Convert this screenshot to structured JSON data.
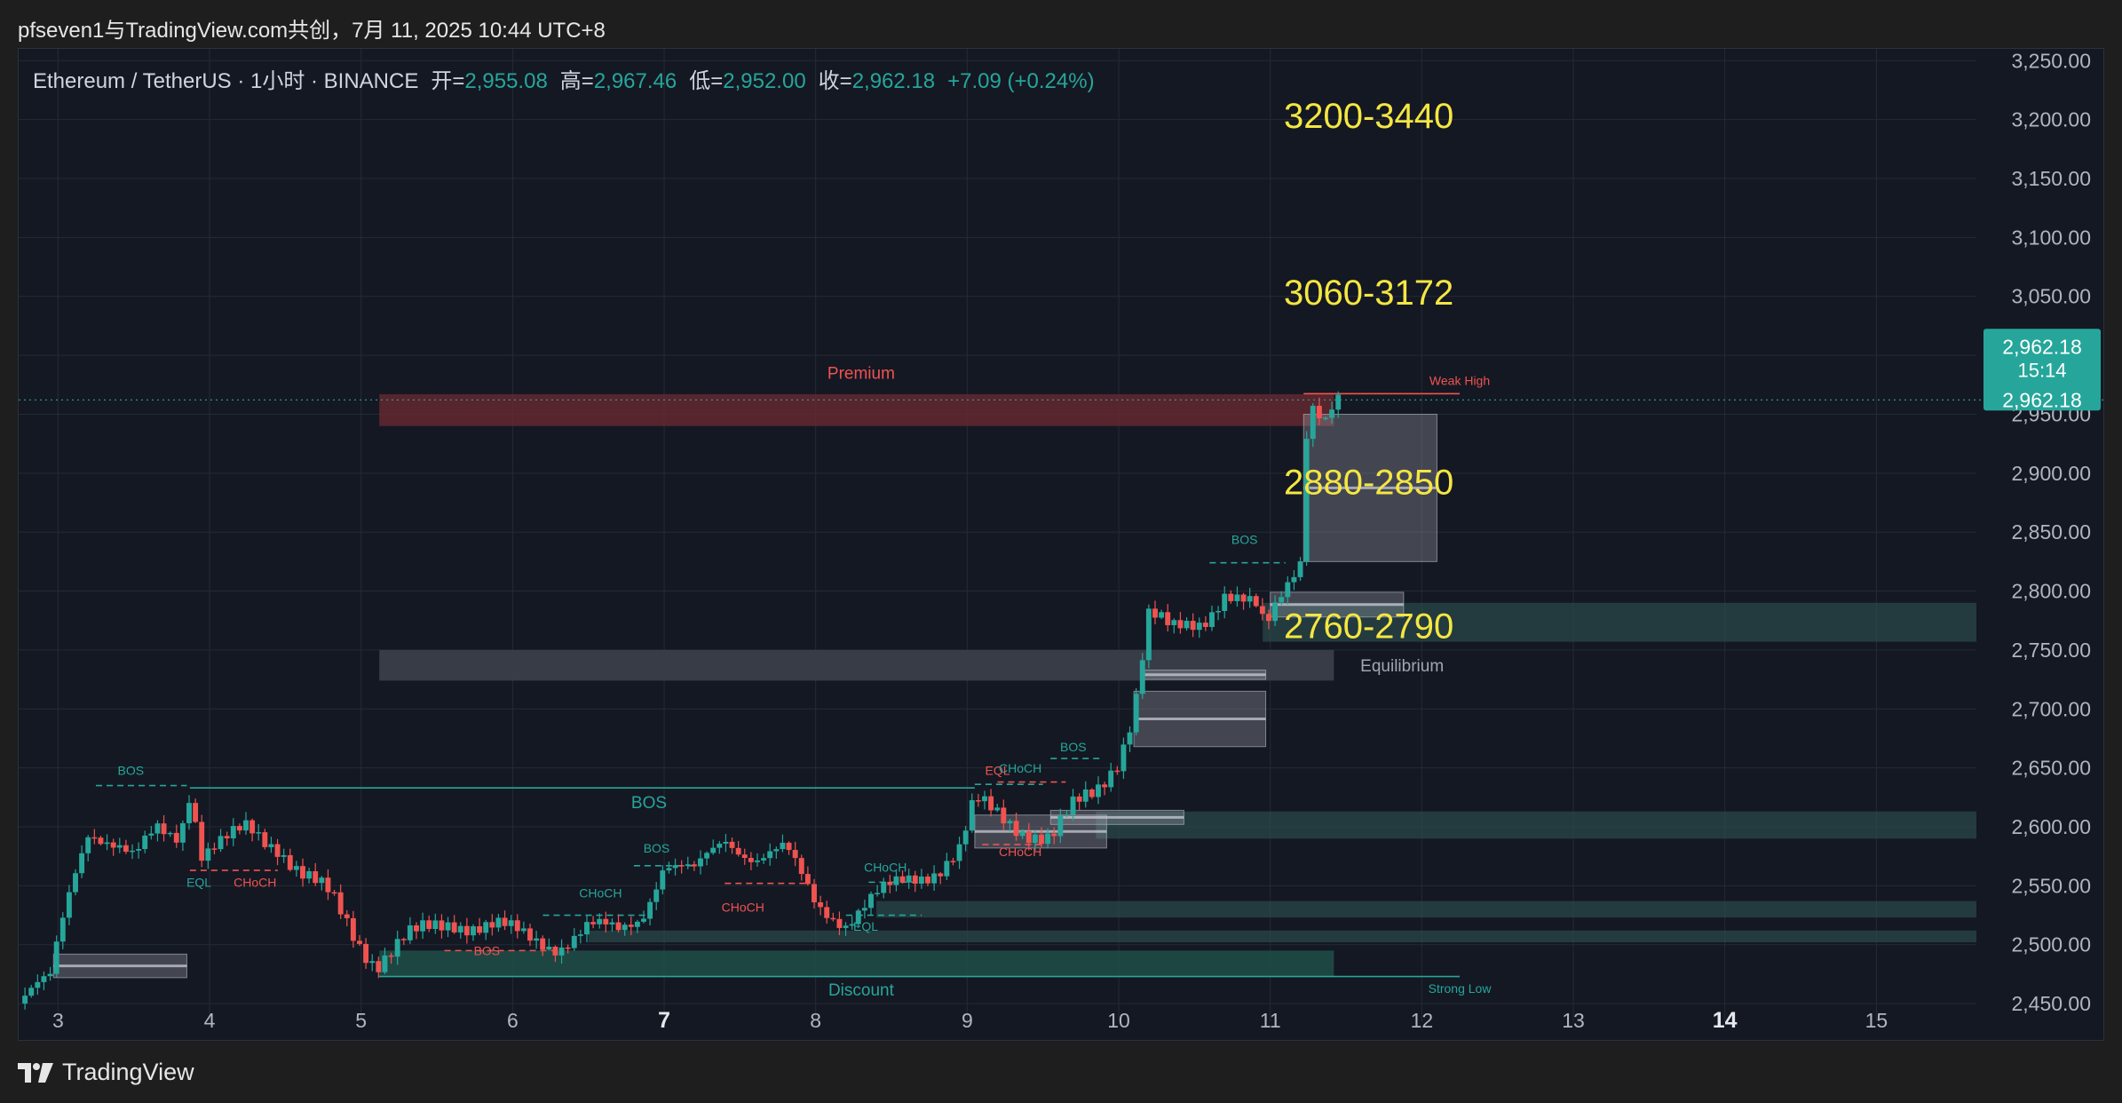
{
  "header": {
    "title": "pfseven1与TradingView.com共创，7月 11, 2025 10:44 UTC+8"
  },
  "legend": {
    "symbol": "Ethereum / TetherUS · 1小时 · BINANCE",
    "open_label": "开=",
    "open": "2,955.08",
    "high_label": "高=",
    "high": "2,967.46",
    "low_label": "低=",
    "low": "2,952.00",
    "close_label": "收=",
    "close": "2,962.18",
    "change": "+7.09 (+0.24%)"
  },
  "price_badge": {
    "price": "2,962.18",
    "countdown": "15:14",
    "price_repeat": "2,962.18"
  },
  "footer": {
    "brand": "TradingView"
  },
  "colors": {
    "bull": "#26a69a",
    "bear": "#ef5350",
    "target_text": "#f5e642",
    "background": "#141823",
    "grid": "#252a36"
  },
  "chart_data": {
    "type": "candlestick",
    "symbol": "ETHUSDT",
    "interval": "1h",
    "yaxis": {
      "min": 2435,
      "max": 3260,
      "ticks": [
        3250,
        3200,
        3150,
        3100,
        3050,
        3000,
        2950,
        2900,
        2850,
        2800,
        2750,
        2700,
        2650,
        2600,
        2550,
        2500,
        2450
      ],
      "tick_labels": [
        "3,250.00",
        "3,200.00",
        "3,150.00",
        "3,100.00",
        "3,050.00",
        "3,000.00",
        "2,950.00",
        "2,900.00",
        "2,850.00",
        "2,800.00",
        "2,750.00",
        "2,700.00",
        "2,650.00",
        "2,600.00",
        "2,550.00",
        "2,500.00",
        "2,450.00"
      ]
    },
    "xaxis": {
      "min_day": 2.74,
      "max_day": 15.66,
      "ticks": [
        3,
        4,
        5,
        6,
        7,
        8,
        9,
        10,
        11,
        12,
        13,
        14,
        15
      ],
      "tick_labels": [
        "3",
        "4",
        "5",
        "6",
        "7",
        "8",
        "9",
        "10",
        "11",
        "12",
        "13",
        "14",
        "15"
      ],
      "bold_ticks": [
        "7",
        "14"
      ]
    },
    "price_path": [
      [
        2.74,
        2450
      ],
      [
        2.95,
        2470
      ],
      [
        3.0,
        2505
      ],
      [
        3.1,
        2560
      ],
      [
        3.2,
        2600
      ],
      [
        3.35,
        2585
      ],
      [
        3.5,
        2570
      ],
      [
        3.65,
        2600
      ],
      [
        3.8,
        2595
      ],
      [
        3.87,
        2632
      ],
      [
        3.95,
        2575
      ],
      [
        4.1,
        2585
      ],
      [
        4.25,
        2600
      ],
      [
        4.45,
        2585
      ],
      [
        4.6,
        2560
      ],
      [
        4.8,
        2540
      ],
      [
        5.0,
        2500
      ],
      [
        5.1,
        2485
      ],
      [
        5.3,
        2505
      ],
      [
        5.6,
        2520
      ],
      [
        5.9,
        2515
      ],
      [
        6.1,
        2505
      ],
      [
        6.3,
        2500
      ],
      [
        6.5,
        2515
      ],
      [
        6.7,
        2510
      ],
      [
        6.85,
        2525
      ],
      [
        7.0,
        2570
      ],
      [
        7.2,
        2560
      ],
      [
        7.4,
        2590
      ],
      [
        7.6,
        2575
      ],
      [
        7.8,
        2580
      ],
      [
        8.0,
        2535
      ],
      [
        8.2,
        2520
      ],
      [
        8.4,
        2540
      ],
      [
        8.6,
        2555
      ],
      [
        8.8,
        2565
      ],
      [
        8.95,
        2580
      ],
      [
        9.05,
        2620
      ],
      [
        9.2,
        2610
      ],
      [
        9.35,
        2600
      ],
      [
        9.55,
        2590
      ],
      [
        9.7,
        2615
      ],
      [
        9.85,
        2630
      ],
      [
        10.0,
        2660
      ],
      [
        10.1,
        2700
      ],
      [
        10.2,
        2780
      ],
      [
        10.35,
        2765
      ],
      [
        10.55,
        2775
      ],
      [
        10.7,
        2800
      ],
      [
        10.9,
        2785
      ],
      [
        10.97,
        2765
      ],
      [
        11.05,
        2790
      ],
      [
        11.2,
        2830
      ],
      [
        11.25,
        2965
      ],
      [
        11.3,
        2960
      ],
      [
        11.35,
        2945
      ],
      [
        11.45,
        2962
      ]
    ],
    "horizontal_levels": {
      "weak_high": 2967.46,
      "last_price": 2962.18
    },
    "zones": [
      {
        "type": "premium",
        "from_day": 5.12,
        "to_day": 11.42,
        "top": 2967,
        "bottom": 2940
      },
      {
        "type": "equilibrium",
        "from_day": 5.12,
        "to_day": 11.42,
        "top": 2750,
        "bottom": 2724
      },
      {
        "type": "discount",
        "from_day": 5.12,
        "to_day": 11.42,
        "top": 2495,
        "bottom": 2473
      },
      {
        "type": "demand",
        "from_day": 10.95,
        "to_day": 15.66,
        "top": 2790,
        "bottom": 2757
      },
      {
        "type": "demand",
        "from_day": 9.85,
        "to_day": 15.66,
        "top": 2613,
        "bottom": 2590
      },
      {
        "type": "demand",
        "from_day": 8.4,
        "to_day": 15.66,
        "top": 2537,
        "bottom": 2523
      },
      {
        "type": "demand",
        "from_day": 6.5,
        "to_day": 15.66,
        "top": 2512,
        "bottom": 2502
      },
      {
        "type": "order_block",
        "from_day": 11.22,
        "to_day": 12.1,
        "top": 2950,
        "bottom": 2825
      },
      {
        "type": "order_block",
        "from_day": 10.1,
        "to_day": 10.97,
        "top": 2715,
        "bottom": 2668
      },
      {
        "type": "order_block",
        "from_day": 9.05,
        "to_day": 9.92,
        "top": 2610,
        "bottom": 2582
      },
      {
        "type": "order_block",
        "from_day": 2.97,
        "to_day": 3.85,
        "top": 2492,
        "bottom": 2472
      },
      {
        "type": "order_block",
        "from_day": 11.0,
        "to_day": 11.88,
        "top": 2799,
        "bottom": 2778
      },
      {
        "type": "order_block",
        "from_day": 10.15,
        "to_day": 10.97,
        "top": 2733,
        "bottom": 2725
      },
      {
        "type": "order_block",
        "from_day": 9.55,
        "to_day": 10.43,
        "top": 2614,
        "bottom": 2602
      }
    ],
    "annotations": [
      {
        "text": "3200-3440",
        "day": 11.65,
        "price": 3193,
        "kind": "target"
      },
      {
        "text": "3060-3172",
        "day": 11.65,
        "price": 3043,
        "kind": "target"
      },
      {
        "text": "2880-2850",
        "day": 11.65,
        "price": 2882,
        "kind": "target"
      },
      {
        "text": "2760-2790",
        "day": 11.65,
        "price": 2760,
        "kind": "target"
      },
      {
        "text": "Premium",
        "day": 8.3,
        "price": 2980,
        "kind": "zone_bear"
      },
      {
        "text": "Equilibrium",
        "day": 11.87,
        "price": 2732,
        "kind": "zone_gray"
      },
      {
        "text": "Discount",
        "day": 8.3,
        "price": 2457,
        "kind": "zone_bull"
      },
      {
        "text": "Weak High",
        "day": 12.25,
        "price": 2975,
        "kind": "small_bear"
      },
      {
        "text": "Strong Low",
        "day": 12.25,
        "price": 2459,
        "kind": "small_bull"
      },
      {
        "text": "BOS",
        "day": 6.9,
        "price": 2616,
        "kind": "bull_large"
      },
      {
        "text": "BOS",
        "day": 3.48,
        "price": 2644,
        "kind": "small_bull"
      },
      {
        "text": "EQL",
        "day": 3.93,
        "price": 2549,
        "kind": "small_bull"
      },
      {
        "text": "CHoCH",
        "day": 4.3,
        "price": 2549,
        "kind": "small_bear"
      },
      {
        "text": "BOS",
        "day": 5.83,
        "price": 2491,
        "kind": "small_bear"
      },
      {
        "text": "BOS",
        "day": 6.95,
        "price": 2578,
        "kind": "small_bull"
      },
      {
        "text": "CHoCH",
        "day": 6.58,
        "price": 2540,
        "kind": "small_bull"
      },
      {
        "text": "CHoCH",
        "day": 7.52,
        "price": 2528,
        "kind": "small_bear"
      },
      {
        "text": "EQL",
        "day": 8.33,
        "price": 2512,
        "kind": "small_bull"
      },
      {
        "text": "CHoCH",
        "day": 8.46,
        "price": 2562,
        "kind": "small_bull"
      },
      {
        "text": "EQL",
        "day": 9.2,
        "price": 2644,
        "kind": "small_bear"
      },
      {
        "text": "CHoCH",
        "day": 9.35,
        "price": 2646,
        "kind": "small_bull"
      },
      {
        "text": "CHoCH",
        "day": 9.35,
        "price": 2575,
        "kind": "small_bear"
      },
      {
        "text": "BOS",
        "day": 9.7,
        "price": 2664,
        "kind": "small_bull"
      },
      {
        "text": "BOS",
        "day": 10.83,
        "price": 2840,
        "kind": "small_bull"
      }
    ],
    "structure_lines": [
      {
        "from_day": 3.87,
        "to_day": 9.05,
        "price": 2633,
        "color": "bull",
        "dashed": false
      },
      {
        "from_day": 5.12,
        "to_day": 12.25,
        "price": 2473,
        "color": "bull",
        "dashed": false
      },
      {
        "from_day": 11.22,
        "to_day": 12.25,
        "price": 2967.46,
        "color": "bear",
        "dashed": false
      },
      {
        "from_day": 3.25,
        "to_day": 3.85,
        "price": 2635,
        "color": "bull",
        "dashed": true
      },
      {
        "from_day": 3.87,
        "to_day": 4.45,
        "price": 2563,
        "color": "bear",
        "dashed": true
      },
      {
        "from_day": 5.55,
        "to_day": 6.3,
        "price": 2495,
        "color": "bear",
        "dashed": true
      },
      {
        "from_day": 6.8,
        "to_day": 7.2,
        "price": 2567,
        "color": "bull",
        "dashed": true
      },
      {
        "from_day": 6.2,
        "to_day": 6.9,
        "price": 2525,
        "color": "bull",
        "dashed": true
      },
      {
        "from_day": 7.4,
        "to_day": 7.95,
        "price": 2552,
        "color": "bear",
        "dashed": true
      },
      {
        "from_day": 8.2,
        "to_day": 8.7,
        "price": 2525,
        "color": "bull",
        "dashed": true
      },
      {
        "from_day": 8.35,
        "to_day": 8.7,
        "price": 2553,
        "color": "bull",
        "dashed": true
      },
      {
        "from_day": 9.2,
        "to_day": 9.65,
        "price": 2638,
        "color": "bear",
        "dashed": true
      },
      {
        "from_day": 9.05,
        "to_day": 9.5,
        "price": 2636,
        "color": "bull",
        "dashed": true
      },
      {
        "from_day": 9.1,
        "to_day": 9.5,
        "price": 2585,
        "color": "bear",
        "dashed": true
      },
      {
        "from_day": 9.55,
        "to_day": 9.9,
        "price": 2658,
        "color": "bull",
        "dashed": true
      },
      {
        "from_day": 10.6,
        "to_day": 11.1,
        "price": 2824,
        "color": "bull",
        "dashed": true
      }
    ]
  }
}
